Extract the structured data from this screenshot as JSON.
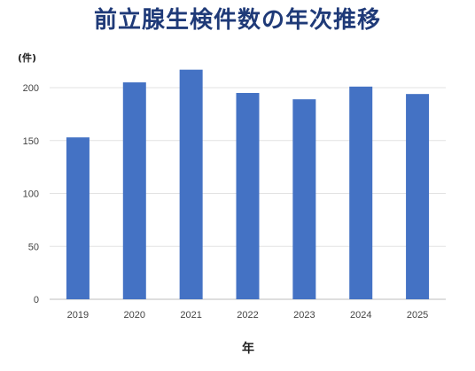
{
  "chart_data": {
    "type": "bar",
    "title": "前立腺生検件数の年次推移",
    "ylabel": "(件)",
    "xlabel": "年",
    "categories": [
      "2019",
      "2020",
      "2021",
      "2022",
      "2023",
      "2024",
      "2025"
    ],
    "values": [
      153,
      205,
      217,
      195,
      189,
      201,
      194
    ],
    "ylim": [
      0,
      200
    ],
    "yticks": [
      0,
      50,
      100,
      150,
      200
    ],
    "grid": true,
    "legend": "none",
    "bar_color": "#4472c4",
    "grid_color": "#e3e3e3"
  }
}
